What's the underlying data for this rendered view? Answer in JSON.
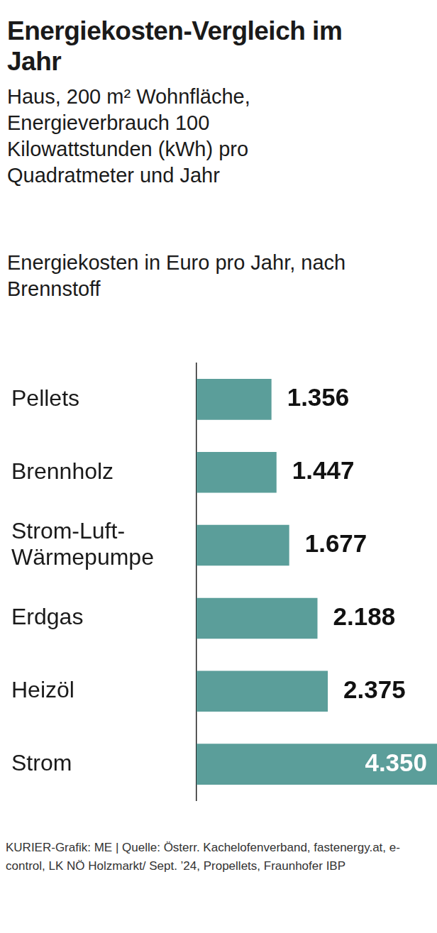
{
  "chart_data": {
    "type": "bar",
    "orientation": "horizontal",
    "title": "Energiekosten-Vergleich im Jahr",
    "subtitle": "Haus, 200 m² Wohnfläche, Energieverbrauch 100 Kilowattstunden (kWh) pro Quadratmeter und Jahr",
    "x_label": "Energiekosten in Euro pro Jahr, nach Brennstoff",
    "source": "KURIER-Grafik: ME | Quelle: Österr. Kachelofenverband, fastenergy.at, e-control, LK NÖ Holzmarkt/ Sept. ’24, Propellets, Fraunhofer IBP",
    "categories": [
      "Pellets",
      "Brennholz",
      "Strom-Luft-Wärmepumpe",
      "Erdgas",
      "Heizöl",
      "Strom"
    ],
    "values": [
      1356,
      1447,
      1677,
      2188,
      2375,
      4350
    ],
    "value_labels": [
      "1.356",
      "1.447",
      "1.677",
      "2.188",
      "2.375",
      "4.350"
    ],
    "data_labels": true,
    "color": "#5b9e9a",
    "xlim": [
      0,
      4350
    ],
    "tick_labels": "y",
    "grid": false
  }
}
